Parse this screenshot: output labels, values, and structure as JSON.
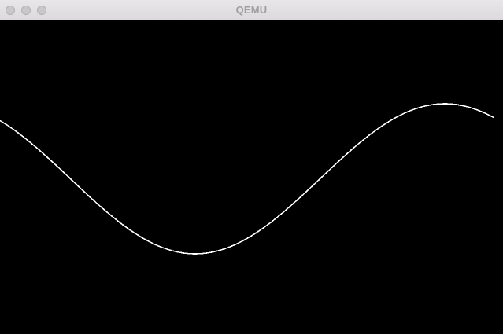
{
  "window": {
    "title": "QEMU",
    "background": "#000000"
  },
  "titlebar": {
    "controls": [
      {
        "name": "close-button",
        "icon": "traffic-light-close-icon"
      },
      {
        "name": "minimize-button",
        "icon": "traffic-light-minimize-icon"
      },
      {
        "name": "zoom-button",
        "icon": "traffic-light-zoom-icon"
      }
    ]
  },
  "screen": {
    "curve_color": "#ffffff",
    "curve": "sine-wave"
  }
}
